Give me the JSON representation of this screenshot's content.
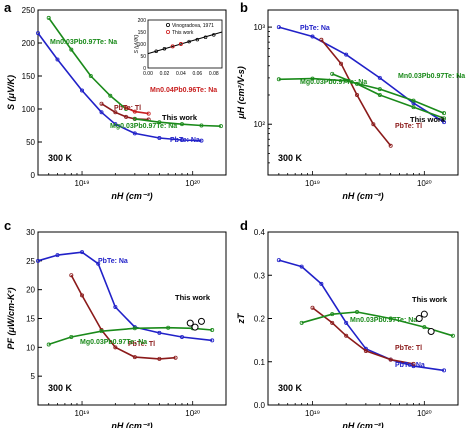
{
  "figure": {
    "panels": [
      {
        "id": "a",
        "panel_letter": "a",
        "temperature": "300 K",
        "ylabel": "S (μV/K)",
        "xlabel": "nH (cm⁻³)",
        "xscale": "log",
        "xlim": [
          4e+18,
          2e+20
        ],
        "ylim": [
          0,
          250
        ],
        "yticks": [
          0,
          50,
          100,
          150,
          200,
          250
        ],
        "ytick_labels": [
          "0",
          "50",
          "100",
          "150",
          "200",
          "250"
        ],
        "xticks": [
          1e+19,
          1e+20
        ],
        "xtick_labels": [
          "10¹⁹",
          "10²⁰"
        ],
        "series": [
          {
            "name": "PbTe: Na",
            "color": "#2121c8",
            "label_text": "PbTe: Na",
            "x": [
              4e+18,
              6e+18,
              1e+19,
              1.5e+19,
              2e+19,
              3e+19,
              5e+19,
              8e+19,
              1.2e+20
            ],
            "y": [
              215,
              175,
              128,
              95,
              77,
              63,
              56,
              53,
              52
            ]
          },
          {
            "name": "PbTe: Tl",
            "color": "#8b1a1a",
            "label_text": "PbTe: Tl",
            "x": [
              1.5e+19,
              2e+19,
              2.5e+19,
              3e+19,
              4e+19
            ],
            "y": [
              108,
              95,
              88,
              85,
              84
            ]
          },
          {
            "name": "Mn0.03Pb0.97Te: Na",
            "color": "#1a8a1a",
            "label_text": "Mn0.03Pb0.97Te: Na",
            "x": [
              5e+18,
              8e+18,
              1.2e+19,
              1.8e+19,
              2.5e+19
            ],
            "y": [
              238,
              190,
              150,
              120,
              100
            ]
          },
          {
            "name": "Mn0.04Pb0.96Te: Na",
            "color": "#c82020",
            "label_text": "Mn0.04Pb0.96Te: Na",
            "x": [
              2.5e+19,
              3e+19,
              4e+19
            ],
            "y": [
              102,
              96,
              93
            ]
          },
          {
            "name": "Mg0.03Pb0.97Te: Na",
            "color": "#1a8a1a",
            "label_text": "Mg0.03Pb0.97Te: Na",
            "x": [
              3e+19,
              5e+19,
              8e+19,
              1.2e+20,
              1.8e+20
            ],
            "y": [
              85,
              80,
              77,
              75,
              74
            ]
          }
        ],
        "annotation": "This work",
        "inset": {
          "ylabel": "S (μV/K)",
          "xlim": [
            0,
            0.09
          ],
          "ylim": [
            0,
            200
          ],
          "xticks": [
            0,
            0.02,
            0.04,
            0.06,
            0.08
          ],
          "xtick_labels": [
            "0.00",
            "0.02",
            "0.04",
            "0.06",
            "0.08"
          ],
          "yticks": [
            0,
            50,
            100,
            150,
            200
          ],
          "ytick_labels": [
            "0",
            "50",
            "100",
            "150",
            "200"
          ],
          "legend": [
            {
              "label": "Vinogradova, 1971",
              "color": "#000000"
            },
            {
              "label": "This work",
              "color": "#d02020"
            }
          ],
          "line": {
            "x": [
              0,
              0.09
            ],
            "y": [
              60,
              150
            ]
          },
          "points_black": {
            "x": [
              0.01,
              0.02,
              0.03,
              0.04,
              0.05,
              0.06,
              0.07,
              0.08
            ],
            "y": [
              70,
              80,
              90,
              100,
              110,
              118,
              128,
              138
            ]
          },
          "points_red": {
            "x": [
              0.03,
              0.04
            ],
            "y": [
              90,
              100
            ]
          }
        }
      },
      {
        "id": "b",
        "panel_letter": "b",
        "temperature": "300 K",
        "ylabel": "μH (cm²/V-s)",
        "xlabel": "nH (cm⁻³)",
        "xscale": "log",
        "yscale": "log",
        "xlim": [
          4e+18,
          2e+20
        ],
        "ylim": [
          30,
          1500
        ],
        "yticks": [
          100,
          1000
        ],
        "ytick_labels": [
          "10²",
          "10³"
        ],
        "xticks": [
          1e+19,
          1e+20
        ],
        "xtick_labels": [
          "10¹⁹",
          "10²⁰"
        ],
        "series": [
          {
            "name": "PbTe: Na",
            "color": "#2121c8",
            "label_text": "PbTe: Na",
            "x": [
              5e+18,
              1e+19,
              2e+19,
              4e+19,
              8e+19,
              1.5e+20
            ],
            "y": [
              1000,
              800,
              520,
              300,
              165,
              105
            ]
          },
          {
            "name": "PbTe: Tl",
            "color": "#8b1a1a",
            "label_text": "PbTe: Tl",
            "x": [
              1.2e+19,
              1.8e+19,
              2.5e+19,
              3.5e+19,
              5e+19
            ],
            "y": [
              740,
              420,
              200,
              100,
              60
            ]
          },
          {
            "name": "Mn0.03Pb0.97Te: Na",
            "color": "#1a8a1a",
            "label_text": "Mn0.03Pb0.97Te: Na",
            "x": [
              1.5e+19,
              2.5e+19,
              4e+19,
              8e+19,
              1.5e+20
            ],
            "y": [
              330,
              260,
              200,
              150,
              115
            ]
          },
          {
            "name": "Mg0.03Pb0.97Te: Na",
            "color": "#1a8a1a",
            "label_text": "Mg0.03Pb0.97Te: Na",
            "x": [
              5e+18,
              1e+19,
              2e+19,
              4e+19,
              8e+19,
              1.5e+20
            ],
            "y": [
              290,
              295,
              280,
              230,
              175,
              130
            ]
          }
        ],
        "annotation": "This work"
      },
      {
        "id": "c",
        "panel_letter": "c",
        "temperature": "300 K",
        "ylabel": "PF (μW/cm-K²)",
        "xlabel": "nH (cm⁻³)",
        "xscale": "log",
        "xlim": [
          4e+18,
          2e+20
        ],
        "ylim": [
          0,
          30
        ],
        "yticks": [
          5,
          10,
          15,
          20,
          25,
          30
        ],
        "ytick_labels": [
          "5",
          "10",
          "15",
          "20",
          "25",
          "30"
        ],
        "xticks": [
          1e+19,
          1e+20
        ],
        "xtick_labels": [
          "10¹⁹",
          "10²⁰"
        ],
        "series": [
          {
            "name": "PbTe: Na",
            "color": "#2121c8",
            "label_text": "PbTe: Na",
            "x": [
              4e+18,
              6e+18,
              1e+19,
              1.4e+19,
              2e+19,
              3e+19,
              5e+19,
              8e+19,
              1.5e+20
            ],
            "y": [
              25,
              26,
              26.5,
              24.5,
              17,
              13.5,
              12.5,
              11.8,
              11.2
            ]
          },
          {
            "name": "PbTe: Tl",
            "color": "#8b1a1a",
            "label_text": "PbTe: Tl",
            "x": [
              8e+18,
              1e+19,
              1.5e+19,
              2e+19,
              3e+19,
              5e+19,
              7e+19
            ],
            "y": [
              22.5,
              19,
              13,
              10,
              8.3,
              8,
              8.2
            ]
          },
          {
            "name": "Mg0.03Pb0.97Te: Na",
            "color": "#1a8a1a",
            "label_text": "Mg0.03Pb0.97Te: Na",
            "x": [
              5e+18,
              8e+18,
              1.5e+19,
              3e+19,
              6e+19,
              1e+20,
              1.5e+20
            ],
            "y": [
              10.5,
              11.8,
              12.8,
              13.3,
              13.4,
              13.3,
              13
            ]
          }
        ],
        "annotation": "This work",
        "this_work_points": {
          "x": [
            9.5e+19,
            1.05e+20,
            1.2e+20
          ],
          "y": [
            14.2,
            13.5,
            14.5
          ]
        }
      },
      {
        "id": "d",
        "panel_letter": "d",
        "temperature": "300 K",
        "ylabel": "zT",
        "xlabel": "nH (cm⁻³)",
        "xscale": "log",
        "xlim": [
          4e+18,
          2e+20
        ],
        "ylim": [
          0,
          0.4
        ],
        "yticks": [
          0,
          0.1,
          0.2,
          0.3,
          0.4
        ],
        "ytick_labels": [
          "0.0",
          "0.1",
          "0.2",
          "0.3",
          "0.4"
        ],
        "xticks": [
          1e+19,
          1e+20
        ],
        "xtick_labels": [
          "10¹⁹",
          "10²⁰"
        ],
        "series": [
          {
            "name": "PbTe: Na",
            "color": "#2121c8",
            "label_text": "PbTe: Na",
            "x": [
              5e+18,
              8e+18,
              1.2e+19,
              2e+19,
              3e+19,
              5e+19,
              8e+19,
              1.5e+20
            ],
            "y": [
              0.335,
              0.32,
              0.28,
              0.19,
              0.13,
              0.105,
              0.09,
              0.08
            ]
          },
          {
            "name": "PbTe: Tl",
            "color": "#8b1a1a",
            "label_text": "PbTe: Tl",
            "x": [
              1e+19,
              1.5e+19,
              2e+19,
              3e+19,
              5e+19,
              8e+19
            ],
            "y": [
              0.225,
              0.19,
              0.16,
              0.125,
              0.105,
              0.095
            ]
          },
          {
            "name": "Mn0.03Pb0.97Te: Na",
            "color": "#1a8a1a",
            "label_text": "Mn0.03Pb0.97Te: Na",
            "x": [
              8e+18,
              1.5e+19,
              2.5e+19,
              5e+19,
              1e+20,
              1.8e+20
            ],
            "y": [
              0.19,
              0.21,
              0.215,
              0.2,
              0.18,
              0.16
            ]
          }
        ],
        "annotation": "This work",
        "this_work_points": {
          "x": [
            9e+19,
            1e+20,
            1.15e+20
          ],
          "y": [
            0.2,
            0.21,
            0.17
          ]
        }
      }
    ]
  }
}
